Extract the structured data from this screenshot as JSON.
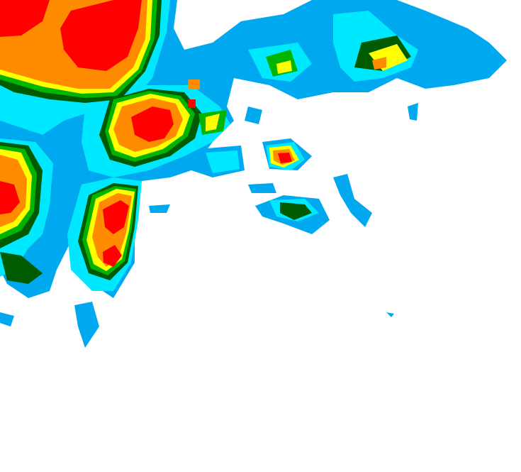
{
  "palette": {
    "background": "#ffffff",
    "light_blue": "#00a8f0",
    "cyan": "#00e8ff",
    "dark_green": "#005a00",
    "green": "#00b400",
    "yellow": "#ffff00",
    "orange": "#ff8c00",
    "red": "#ff0000"
  }
}
